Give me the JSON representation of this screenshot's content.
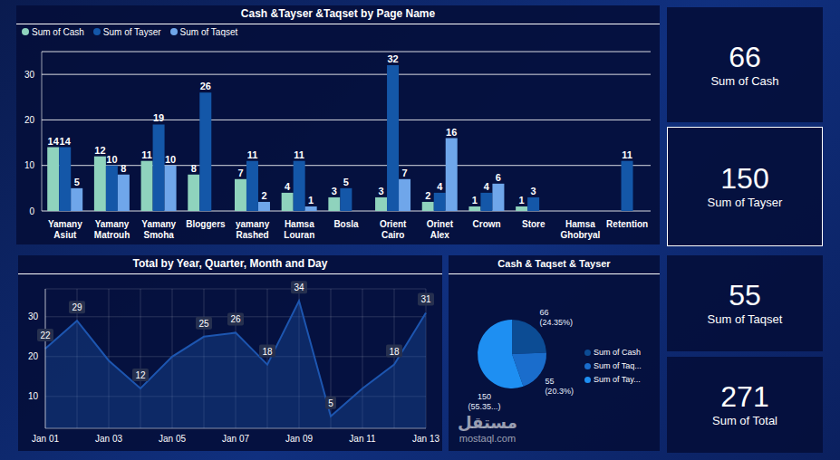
{
  "chart_data": [
    {
      "type": "bar",
      "title": "Cash &Tayser &Taqset by Page Name",
      "categories": [
        "Yamany Asiut",
        "Yamany Matrouh",
        "Yamany Smoha",
        "Bloggers",
        "yamany Rashed",
        "Hamsa Louran",
        "Bosla",
        "Orient Cairo",
        "Orinet Alex",
        "Crown",
        "Store",
        "Hamsa Ghobryal",
        "Retention"
      ],
      "series": [
        {
          "name": "Sum of Cash",
          "color": "#8fd3bd",
          "values": [
            14,
            12,
            11,
            8,
            7,
            4,
            3,
            3,
            2,
            1,
            1,
            0,
            0
          ]
        },
        {
          "name": "Sum of Tayser",
          "color": "#1457a8",
          "values": [
            14,
            10,
            19,
            26,
            11,
            11,
            5,
            32,
            4,
            4,
            3,
            0,
            11
          ]
        },
        {
          "name": "Sum of Taqset",
          "color": "#6fa6ea",
          "values": [
            5,
            8,
            10,
            0,
            2,
            1,
            0,
            7,
            16,
            6,
            0,
            0,
            0
          ]
        }
      ],
      "ylim": [
        0,
        35
      ],
      "yticks": [
        0,
        10,
        20,
        30
      ],
      "grid": true,
      "legend": "top-left",
      "data_labels": true
    },
    {
      "type": "area",
      "title": "Total by Year, Quarter, Month and Day",
      "categories": [
        "Jan 01",
        null,
        "Jan 03",
        null,
        "Jan 05",
        null,
        "Jan 07",
        null,
        "Jan 09",
        null,
        "Jan 11",
        null,
        "Jan 13"
      ],
      "values": [
        22,
        29,
        19,
        12,
        20,
        25,
        26,
        18,
        34,
        5,
        12,
        18,
        31
      ],
      "value_labels": [
        "22",
        "29",
        null,
        "12",
        null,
        "25",
        "26",
        "18",
        "34",
        "5",
        null,
        "18",
        "31"
      ],
      "color": "#1d56b0",
      "ylim": [
        2,
        37
      ],
      "yticks": [
        10,
        20,
        30
      ],
      "grid": true,
      "data_labels": true
    },
    {
      "type": "pie",
      "title": "Cash & Taqset & Tayser",
      "categories": [
        "Sum of Cash",
        "Sum of Taq...",
        "Sum of Tay..."
      ],
      "values": [
        66,
        55,
        150
      ],
      "value_labels": [
        "66 (24.35%)",
        "55 (20.3%)",
        "150 (55.35...)"
      ],
      "colors": [
        "#0c4c94",
        "#1a6dcc",
        "#1e8ff2"
      ],
      "legend": "right",
      "data_labels": true
    }
  ],
  "cards": [
    {
      "value": 66,
      "label": "Sum of Cash"
    },
    {
      "value": 150,
      "label": "Sum of Tayser"
    },
    {
      "value": 55,
      "label": "Sum of Taqset"
    },
    {
      "value": 271,
      "label": "Sum of Total"
    }
  ],
  "watermark": [
    "مستقل",
    "mostaql.com"
  ]
}
